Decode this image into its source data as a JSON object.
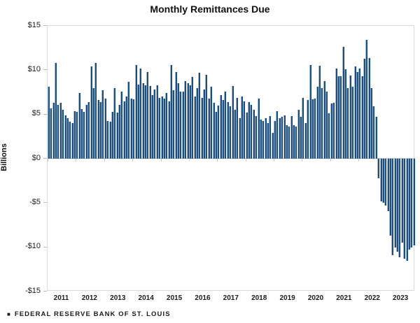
{
  "title": "Monthly Remittances Due",
  "y_axis": {
    "label": "Billions",
    "tick_labels": [
      "$15",
      "$10",
      "$5",
      "$0",
      "-$5",
      "-$10",
      "-$15"
    ],
    "tick_values": [
      15,
      10,
      5,
      0,
      -5,
      -10,
      -15
    ],
    "max": 15,
    "min": -15
  },
  "x_axis": {
    "years": [
      "2011",
      "2012",
      "2013",
      "2014",
      "2015",
      "2016",
      "2017",
      "2018",
      "2019",
      "2020",
      "2021",
      "2022",
      "2023"
    ]
  },
  "source": {
    "marker": "■",
    "label": "FEDERAL RESERVE BANK OF ST. LOUIS"
  },
  "colors": {
    "bar_fill": "#1d4e79",
    "bar_edge": "#9fb9d4",
    "plot_border": "#d9d9d9",
    "zero_line": "#c2c2c2",
    "text": "#1a1a1a"
  },
  "chart_data": {
    "type": "bar",
    "title": "Monthly Remittances Due",
    "xlabel": "",
    "ylabel": "Billions",
    "unit": "USD billions",
    "ylim": [
      -15,
      15
    ],
    "grid": false,
    "legend": "none",
    "series": [
      {
        "name": "Monthly remittances due",
        "by_year": [
          {
            "year": "2011",
            "monthly": [
              8.1,
              5.7,
              6.3,
              10.8,
              6.1,
              6.3,
              5.5,
              4.9,
              4.6,
              4.2,
              4.0,
              5.4
            ]
          },
          {
            "year": "2012",
            "monthly": [
              5.3,
              7.4,
              5.6,
              5.3,
              6.1,
              6.4,
              10.4,
              8.0,
              10.8,
              6.6,
              6.4,
              7.7
            ]
          },
          {
            "year": "2013",
            "monthly": [
              6.8,
              4.3,
              4.2,
              5.3,
              8.0,
              5.2,
              6.1,
              7.6,
              6.5,
              7.0,
              8.7,
              6.8
            ]
          },
          {
            "year": "2014",
            "monthly": [
              6.7,
              10.6,
              8.4,
              10.2,
              8.5,
              8.3,
              9.8,
              8.2,
              7.2,
              7.8,
              8.3,
              6.9
            ]
          },
          {
            "year": "2015",
            "monthly": [
              7.0,
              6.8,
              7.4,
              6.5,
              10.6,
              7.7,
              9.8,
              8.5,
              7.6,
              7.6,
              8.8,
              8.5
            ]
          },
          {
            "year": "2016",
            "monthly": [
              8.3,
              9.2,
              7.0,
              8.0,
              9.7,
              6.9,
              7.8,
              9.5,
              6.8,
              8.1,
              6.3,
              5.3
            ]
          },
          {
            "year": "2017",
            "monthly": [
              6.0,
              7.2,
              6.6,
              7.6,
              6.4,
              5.9,
              8.2,
              5.5,
              6.9,
              4.6,
              7.0,
              6.5
            ]
          },
          {
            "year": "2018",
            "monthly": [
              5.2,
              6.4,
              6.1,
              5.5,
              4.8,
              6.8,
              4.4,
              4.3,
              4.6,
              4.0,
              4.8,
              2.9
            ]
          },
          {
            "year": "2019",
            "monthly": [
              4.3,
              5.4,
              4.6,
              4.7,
              4.9,
              3.8,
              3.6,
              4.8,
              3.8,
              3.6,
              5.5,
              4.7
            ]
          },
          {
            "year": "2020",
            "monthly": [
              6.9,
              4.0,
              6.6,
              10.6,
              6.7,
              6.8,
              8.1,
              10.5,
              8.0,
              8.8,
              7.6,
              5.1
            ]
          },
          {
            "year": "2021",
            "monthly": [
              6.2,
              6.3,
              10.2,
              9.3,
              9.3,
              12.6,
              10.1,
              8.0,
              9.4,
              8.1,
              10.4,
              9.8
            ]
          },
          {
            "year": "2022",
            "monthly": [
              10.2,
              9.3,
              11.3,
              13.4,
              11.4,
              8.0,
              5.9,
              4.7,
              -2.2,
              -4.8,
              -5.0,
              -5.3
            ]
          },
          {
            "year": "2023",
            "monthly": [
              -5.9,
              -8.7,
              -10.9,
              -10.0,
              -10.5,
              -11.1,
              -9.5,
              -11.3,
              -11.5,
              -10.3,
              -10.0,
              -9.8
            ]
          }
        ]
      }
    ]
  }
}
